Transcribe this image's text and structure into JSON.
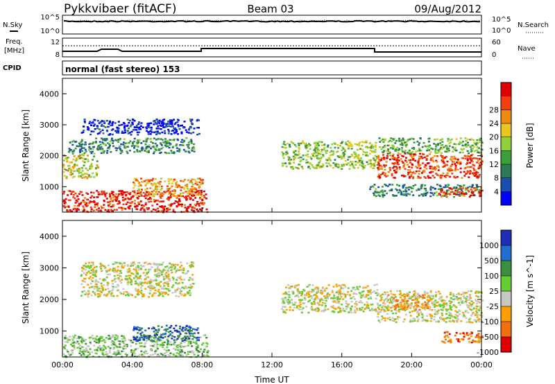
{
  "header": {
    "station": "Pykkvibaer (fitACF)",
    "beam": "Beam 03",
    "date": "09/Aug/2012"
  },
  "status_panels": {
    "nsky_label": "N.Sky",
    "nsky_ticks": [
      "10^5",
      "10^0"
    ],
    "nsearch_label": "N.Search",
    "nsearch_ticks": [
      "10^5",
      "10^0"
    ],
    "freq_label_1": "Freq.",
    "freq_label_2": "[MHz]",
    "freq_ticks": [
      "12",
      "8"
    ],
    "nave_label": "Nave",
    "nave_ticks": [
      "60",
      "0"
    ],
    "cpid_label": "CPID",
    "cpid_text": "normal (fast stereo) 153"
  },
  "chart_data": [
    {
      "type": "heatmap",
      "name": "power",
      "ylabel": "Slant Range [km]",
      "ylim": [
        180,
        4500
      ],
      "yticks": [
        "1000",
        "2000",
        "3000",
        "4000"
      ],
      "colorbar": {
        "label": "Power [dB]",
        "ticks": [
          "4",
          "8",
          "12",
          "16",
          "20",
          "24",
          "28"
        ],
        "colors": [
          "#0000ff",
          "#1a4fb0",
          "#2d7a57",
          "#3ca03a",
          "#8fd13a",
          "#e8c820",
          "#f08a10",
          "#f04010",
          "#e00000"
        ]
      },
      "bands": [
        {
          "t0": 0.0,
          "t1": 8.3,
          "r0": 200,
          "r1": 900,
          "level": 0.92
        },
        {
          "t0": 0.0,
          "t1": 2.0,
          "r0": 1300,
          "r1": 2100,
          "level": 0.55
        },
        {
          "t0": 4.0,
          "t1": 8.0,
          "r0": 700,
          "r1": 1300,
          "level": 0.7
        },
        {
          "t0": 0.2,
          "t1": 7.5,
          "r0": 2100,
          "r1": 2600,
          "level": 0.3
        },
        {
          "t0": 1.0,
          "t1": 7.8,
          "r0": 2700,
          "r1": 3200,
          "level": 0.08
        },
        {
          "t0": 12.5,
          "t1": 18.0,
          "r0": 1600,
          "r1": 2500,
          "level": 0.5
        },
        {
          "t0": 18.0,
          "t1": 24.0,
          "r0": 1300,
          "r1": 2100,
          "level": 0.85
        },
        {
          "t0": 17.5,
          "t1": 24.0,
          "r0": 700,
          "r1": 1100,
          "level": 0.3
        },
        {
          "t0": 21.5,
          "t1": 24.0,
          "r0": 700,
          "r1": 1000,
          "level": 0.85
        },
        {
          "t0": 18.0,
          "t1": 24.0,
          "r0": 2100,
          "r1": 2600,
          "level": 0.4
        }
      ]
    },
    {
      "type": "heatmap",
      "name": "velocity",
      "xlabel": "Time UT",
      "ylabel": "Slant Range [km]",
      "ylim": [
        180,
        4500
      ],
      "yticks": [
        "1000",
        "2000",
        "3000",
        "4000"
      ],
      "xticks": [
        "00:00",
        "04:00",
        "08:00",
        "12:00",
        "16:00",
        "20:00",
        "00:00"
      ],
      "colorbar": {
        "label": "Velocity [m s^-1]",
        "ticks": [
          "1000",
          "500",
          "100",
          "25",
          "-25",
          "-100",
          "-500",
          "-1000"
        ],
        "colors": [
          "#1e2eb8",
          "#1f6ed0",
          "#3c8f3c",
          "#66cc33",
          "#c8c8c0",
          "#ffa000",
          "#f07010",
          "#e00000"
        ]
      },
      "bands": [
        {
          "t0": 0.0,
          "t1": 8.3,
          "r0": 200,
          "r1": 900,
          "level": 0.55
        },
        {
          "t0": 1.0,
          "t1": 7.5,
          "r0": 2100,
          "r1": 3200,
          "level": 0.45
        },
        {
          "t0": 4.0,
          "t1": 7.8,
          "r0": 700,
          "r1": 1200,
          "level": 0.8
        },
        {
          "t0": 12.5,
          "t1": 18.0,
          "r0": 1600,
          "r1": 2500,
          "level": 0.45
        },
        {
          "t0": 18.0,
          "t1": 24.0,
          "r0": 1300,
          "r1": 2300,
          "level": 0.45
        },
        {
          "t0": 18.5,
          "t1": 21.0,
          "r0": 1700,
          "r1": 2200,
          "level": 0.3
        },
        {
          "t0": 21.5,
          "t1": 24.0,
          "r0": 650,
          "r1": 1000,
          "level": 0.2
        }
      ]
    }
  ]
}
